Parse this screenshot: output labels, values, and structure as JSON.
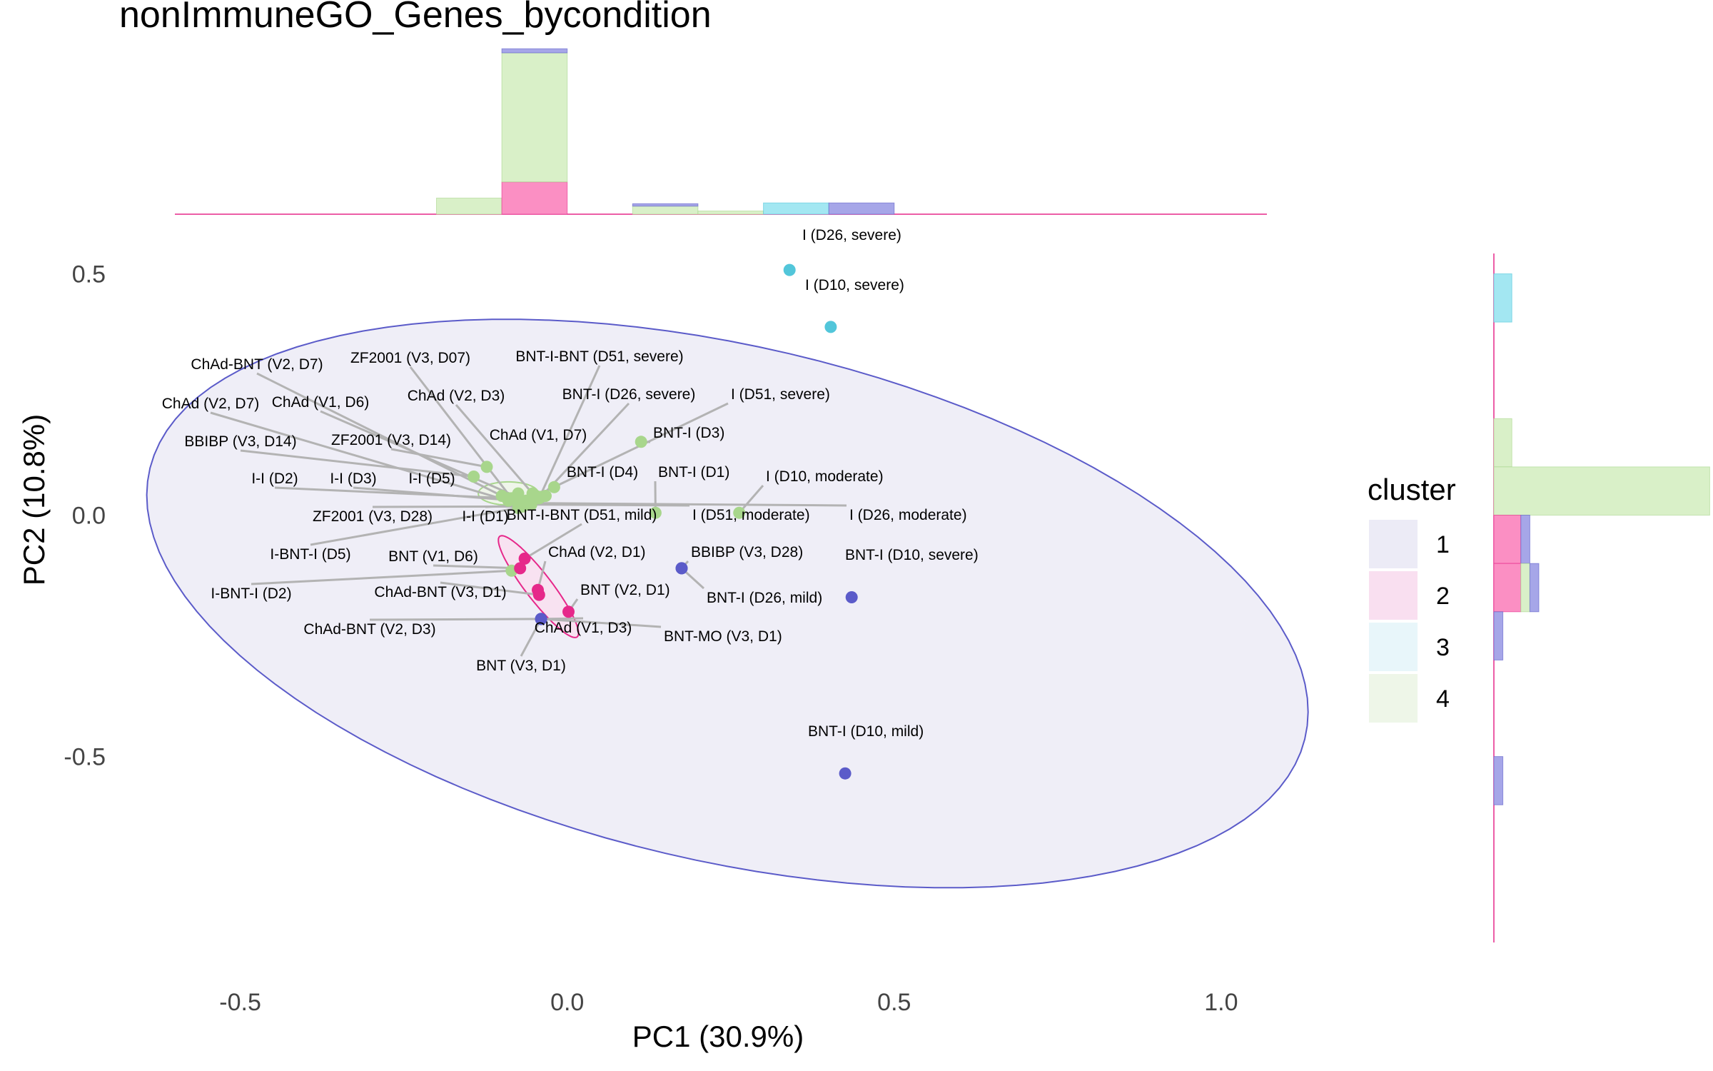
{
  "chart_data": {
    "type": "scatter",
    "title": "nonImmuneGO_Genes_bycondition",
    "xlabel": "PC1 (30.9%)",
    "ylabel": "PC2 (10.8%)",
    "xlim": [
      -0.6,
      1.07
    ],
    "ylim": [
      -0.9,
      0.52
    ],
    "x_ticks": [
      {
        "value": -0.5,
        "label": "-0.5"
      },
      {
        "value": 0.0,
        "label": "0.0"
      },
      {
        "value": 0.5,
        "label": "0.5"
      },
      {
        "value": 1.0,
        "label": "1.0"
      }
    ],
    "y_ticks": [
      {
        "value": 0.5,
        "label": "0.5"
      },
      {
        "value": 0.0,
        "label": "0.0"
      },
      {
        "value": -0.5,
        "label": "-0.5"
      }
    ],
    "legend": {
      "title": "cluster",
      "placement": "right",
      "entries": [
        {
          "label": "1",
          "cluster": "1"
        },
        {
          "label": "2",
          "cluster": "2"
        },
        {
          "label": "3",
          "cluster": "3"
        },
        {
          "label": "4",
          "cluster": "4"
        }
      ]
    },
    "cluster_colors": {
      "1": "#5b5bc9",
      "2": "#e6288a",
      "3": "#52c6da",
      "4": "#a8d68c"
    },
    "cluster_fills": {
      "1": "#ecebf6",
      "2": "#f9dff0",
      "3": "#e8f6fa",
      "4": "#eef6e8"
    },
    "hist_colors": {
      "1": "#a6a6e8",
      "2": "#fb8fc3",
      "3": "#a3e7f2",
      "4": "#d9f0c8"
    },
    "grid": false,
    "points": [
      {
        "label": "I (D26, severe)",
        "x": 0.34,
        "y": 0.508,
        "cluster": "3"
      },
      {
        "label": "I (D10, severe)",
        "x": 0.403,
        "y": 0.39,
        "cluster": "3"
      },
      {
        "label": "BNT-I (D3)",
        "x": 0.113,
        "y": 0.152,
        "cluster": "4"
      },
      {
        "label": "BNT-I (D1)",
        "x": 0.135,
        "y": 0.005,
        "cluster": "4"
      },
      {
        "label": "I (D10, moderate)",
        "x": 0.263,
        "y": 0.005,
        "cluster": "4"
      },
      {
        "label": "ZF2001 (V3, D14)",
        "x": -0.123,
        "y": 0.1,
        "cluster": "4"
      },
      {
        "label": "BBIBP (V3, D14)",
        "x": -0.143,
        "y": 0.08,
        "cluster": "4"
      },
      {
        "label": "ChAd (V1, D7)",
        "x": -0.02,
        "y": 0.058,
        "cluster": "4"
      },
      {
        "label": "BNT-I (D4)",
        "x": -0.033,
        "y": 0.04,
        "cluster": "4"
      },
      {
        "label": "ChAd (V2, D3)",
        "x": -0.053,
        "y": 0.045,
        "cluster": "4"
      },
      {
        "label": "I-I (D5)",
        "x": -0.075,
        "y": 0.045,
        "cluster": "4"
      },
      {
        "label": "ChAd-BNT (V2, D7)",
        "x": -0.1,
        "y": 0.04,
        "cluster": "4"
      },
      {
        "label": "ZF2001 (V3, D07)",
        "x": -0.085,
        "y": 0.035,
        "cluster": "4"
      },
      {
        "label": "ChAd (V1, D6)",
        "x": -0.063,
        "y": 0.03,
        "cluster": "4"
      },
      {
        "label": "ChAd (V2, D7)",
        "x": -0.09,
        "y": 0.03,
        "cluster": "4"
      },
      {
        "label": "I-I (D2)",
        "x": -0.09,
        "y": 0.035,
        "cluster": "4"
      },
      {
        "label": "I-I (D3)",
        "x": -0.078,
        "y": 0.03,
        "cluster": "4"
      },
      {
        "label": "BNT-I-BNT (D51, severe)",
        "x": -0.043,
        "y": 0.035,
        "cluster": "4"
      },
      {
        "label": "BNT-I (D26, severe)",
        "x": -0.04,
        "y": 0.038,
        "cluster": "4"
      },
      {
        "label": "I (D51, severe)",
        "x": -0.048,
        "y": 0.04,
        "cluster": "4"
      },
      {
        "label": "I (D51, moderate)",
        "x": -0.055,
        "y": 0.022,
        "cluster": "4"
      },
      {
        "label": "I (D26, moderate)",
        "x": -0.058,
        "y": 0.025,
        "cluster": "4"
      },
      {
        "label": "ZF2001 (V3, D28)",
        "x": -0.068,
        "y": 0.018,
        "cluster": "4"
      },
      {
        "label": "I-I (D1)",
        "x": -0.07,
        "y": 0.02,
        "cluster": "4"
      },
      {
        "label": "I-BNT-I (D5)",
        "x": -0.075,
        "y": 0.015,
        "cluster": "4"
      },
      {
        "label": "I-BNT-I (D2)",
        "x": -0.085,
        "y": -0.115,
        "cluster": "4"
      },
      {
        "label": "BNT-I-BNT (D51, mild)",
        "x": -0.065,
        "y": -0.09,
        "cluster": "2"
      },
      {
        "label": "BNT (V1, D6)",
        "x": -0.072,
        "y": -0.11,
        "cluster": "2"
      },
      {
        "label": "ChAd (V2, D1)",
        "x": -0.045,
        "y": -0.155,
        "cluster": "2"
      },
      {
        "label": "ChAd-BNT (V3, D1)",
        "x": -0.043,
        "y": -0.165,
        "cluster": "2"
      },
      {
        "label": "BNT (V2, D1)",
        "x": 0.002,
        "y": -0.2,
        "cluster": "2"
      },
      {
        "label": "ChAd-BNT (V2, D3)",
        "x": -0.04,
        "y": -0.215,
        "cluster": "1"
      },
      {
        "label": "BNT (V3, D1)",
        "x": -0.04,
        "y": -0.215,
        "cluster": "1"
      },
      {
        "label": "ChAd (V1, D3)",
        "x": -0.04,
        "y": -0.215,
        "cluster": "1"
      },
      {
        "label": "BNT-MO (V3, D1)",
        "x": -0.04,
        "y": -0.215,
        "cluster": "1"
      },
      {
        "label": "BBIBP (V3, D28)",
        "x": 0.175,
        "y": -0.11,
        "cluster": "1"
      },
      {
        "label": "BNT-I (D26, mild)",
        "x": 0.175,
        "y": -0.11,
        "cluster": "1"
      },
      {
        "label": "BNT-I (D10, severe)",
        "x": 0.435,
        "y": -0.17,
        "cluster": "1"
      },
      {
        "label": "BNT-I (D10, mild)",
        "x": 0.425,
        "y": -0.535,
        "cluster": "1"
      }
    ],
    "ellipses": [
      {
        "cluster": "1",
        "cx": 0.245,
        "cy": -0.183,
        "rx": 0.93,
        "ry": 0.52,
        "angle_deg": -21
      },
      {
        "cluster": "2",
        "cx": -0.044,
        "cy": -0.148,
        "rx": 0.12,
        "ry": 0.022,
        "angle_deg": -61
      },
      {
        "cluster": "4",
        "cx": -0.09,
        "cy": 0.045,
        "rx": 0.046,
        "ry": 0.024,
        "angle_deg": 0
      }
    ],
    "top_histogram": {
      "bins": [
        {
          "x0": -0.2,
          "x1": -0.1,
          "counts": {
            "4": 2
          }
        },
        {
          "x0": -0.1,
          "x1": 0.0,
          "counts": {
            "2": 4,
            "4": 16,
            "1": 0.5
          }
        },
        {
          "x0": 0.1,
          "x1": 0.2,
          "counts": {
            "4": 1,
            "1": 0.3
          }
        },
        {
          "x0": 0.2,
          "x1": 0.3,
          "counts": {
            "4": 0.4
          }
        },
        {
          "x0": 0.3,
          "x1": 0.4,
          "counts": {
            "3": 1.4
          }
        },
        {
          "x0": 0.4,
          "x1": 0.5,
          "counts": {
            "1": 1.4
          }
        }
      ]
    },
    "right_histogram": {
      "bins": [
        {
          "y0": 0.4,
          "y1": 0.5,
          "counts": {
            "3": 2
          }
        },
        {
          "y0": 0.1,
          "y1": 0.2,
          "counts": {
            "4": 2
          }
        },
        {
          "y0": 0.0,
          "y1": 0.1,
          "counts": {
            "4": 24
          }
        },
        {
          "y0": -0.1,
          "y1": 0.0,
          "counts": {
            "2": 3,
            "1": 1
          }
        },
        {
          "y0": -0.2,
          "y1": -0.1,
          "counts": {
            "2": 3,
            "4": 1,
            "1": 1
          }
        },
        {
          "y0": -0.3,
          "y1": -0.2,
          "counts": {
            "1": 1
          }
        },
        {
          "y0": -0.6,
          "y1": -0.5,
          "counts": {
            "1": 1
          }
        }
      ]
    }
  }
}
